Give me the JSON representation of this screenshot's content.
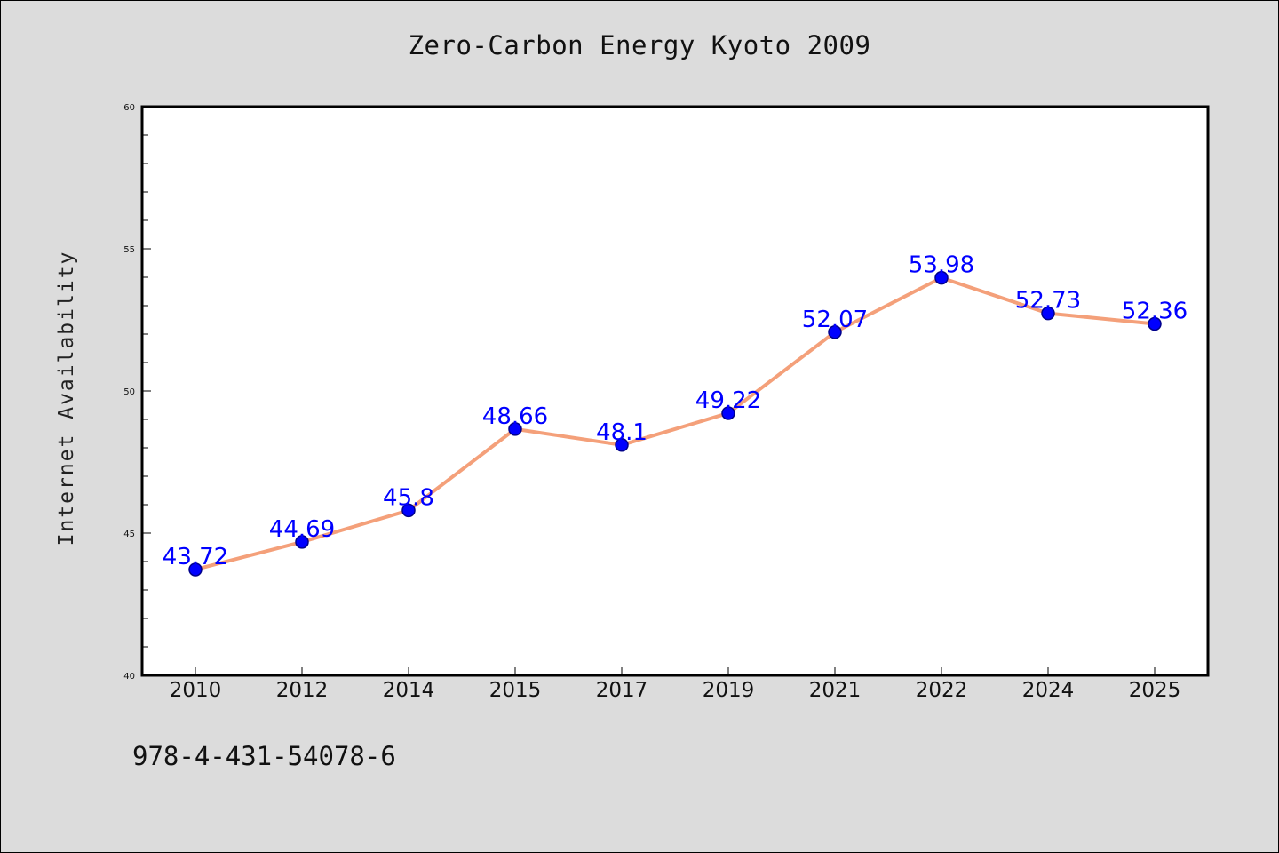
{
  "chart_data": {
    "type": "line",
    "title": "Zero-Carbon Energy Kyoto 2009",
    "xlabel": "",
    "ylabel": "Internet Availability",
    "categories": [
      "2010",
      "2012",
      "2014",
      "2015",
      "2017",
      "2019",
      "2021",
      "2022",
      "2024",
      "2025"
    ],
    "series": [
      {
        "values": [
          43.72,
          44.69,
          45.8,
          48.66,
          48.1,
          49.22,
          52.07,
          53.98,
          52.73,
          52.36
        ],
        "data_labels": [
          "43.72",
          "44.69",
          "45.8",
          "48.66",
          "48.1",
          "49.22",
          "52.07",
          "53.98",
          "52.73",
          "52.36"
        ]
      }
    ],
    "ylim": [
      40,
      60
    ],
    "yticks": [
      "40",
      "45",
      "50",
      "55",
      "60"
    ],
    "grid": false,
    "colors": {
      "line": "#f4a07a",
      "marker": "#0000ff",
      "marker_edge": "#00008b",
      "data_label": "#0000ff",
      "plot_background": "#ffffff",
      "figure_background": "#dcdcdc"
    }
  },
  "footer": {
    "isbn": "978-4-431-54078-6"
  }
}
